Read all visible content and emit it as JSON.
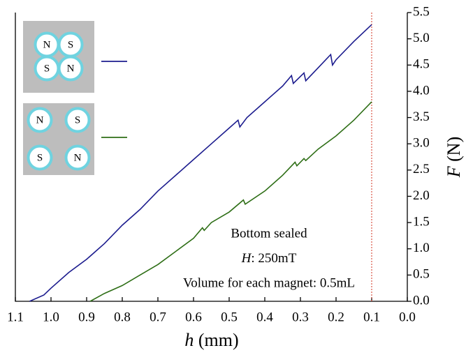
{
  "chart_data": {
    "type": "line",
    "xlabel": {
      "symbol": "h",
      "unit": "(mm)"
    },
    "ylabel": {
      "symbol": "F",
      "unit": "(N)"
    },
    "annotations": [
      "Bottom sealed",
      {
        "symbol": "H",
        "text": ": 250mT"
      },
      "Volume for each magnet: 0.5mL"
    ],
    "legend": [
      {
        "letters": [
          "N",
          "S",
          "S",
          "N"
        ]
      },
      {
        "letters": [
          "N",
          "S",
          "S",
          "N"
        ]
      }
    ],
    "xlim": [
      1.1,
      0.0
    ],
    "xticks": [
      1.1,
      {
        "value": 1,
        "label": "1.0"
      },
      0.9,
      0.8,
      0.7,
      0.6,
      0.5,
      0.4,
      0.3,
      0.2,
      0.1,
      {
        "value": 0,
        "label": "0.0"
      }
    ],
    "ylim": [
      0,
      5.5
    ],
    "yticks": [
      {
        "value": 0,
        "label": "0.0"
      },
      0.5,
      {
        "value": 1,
        "label": "1.0"
      },
      1.5,
      {
        "value": 2,
        "label": "2.0"
      },
      2.5,
      {
        "value": 3,
        "label": "3.0"
      },
      3.5,
      {
        "value": 4,
        "label": "4.0"
      },
      4.5,
      {
        "value": 5,
        "label": "5.0"
      },
      5.5
    ],
    "vline": {
      "x": 0.1,
      "color": "#d0301c"
    },
    "series": [
      {
        "color": "#1c1c8e",
        "x": [
          1.06,
          1.02,
          1.0,
          0.95,
          0.9,
          0.85,
          0.8,
          0.75,
          0.7,
          0.65,
          0.6,
          0.55,
          0.5,
          0.475,
          0.47,
          0.45,
          0.4,
          0.35,
          0.325,
          0.32,
          0.29,
          0.285,
          0.25,
          0.215,
          0.21,
          0.2,
          0.15,
          0.1
        ],
        "values": [
          0,
          0.12,
          0.25,
          0.55,
          0.8,
          1.1,
          1.45,
          1.75,
          2.1,
          2.4,
          2.7,
          3.0,
          3.3,
          3.45,
          3.32,
          3.5,
          3.8,
          4.1,
          4.3,
          4.15,
          4.35,
          4.2,
          4.45,
          4.7,
          4.5,
          4.6,
          4.95,
          5.27
        ]
      },
      {
        "color": "#2e6e16",
        "x": [
          0.89,
          0.85,
          0.8,
          0.75,
          0.7,
          0.65,
          0.6,
          0.575,
          0.57,
          0.55,
          0.5,
          0.46,
          0.455,
          0.4,
          0.35,
          0.315,
          0.31,
          0.29,
          0.285,
          0.25,
          0.2,
          0.15,
          0.1
        ],
        "values": [
          0,
          0.15,
          0.3,
          0.5,
          0.7,
          0.95,
          1.2,
          1.4,
          1.35,
          1.5,
          1.7,
          1.93,
          1.85,
          2.1,
          2.4,
          2.65,
          2.58,
          2.72,
          2.68,
          2.9,
          3.15,
          3.45,
          3.8
        ]
      }
    ]
  }
}
